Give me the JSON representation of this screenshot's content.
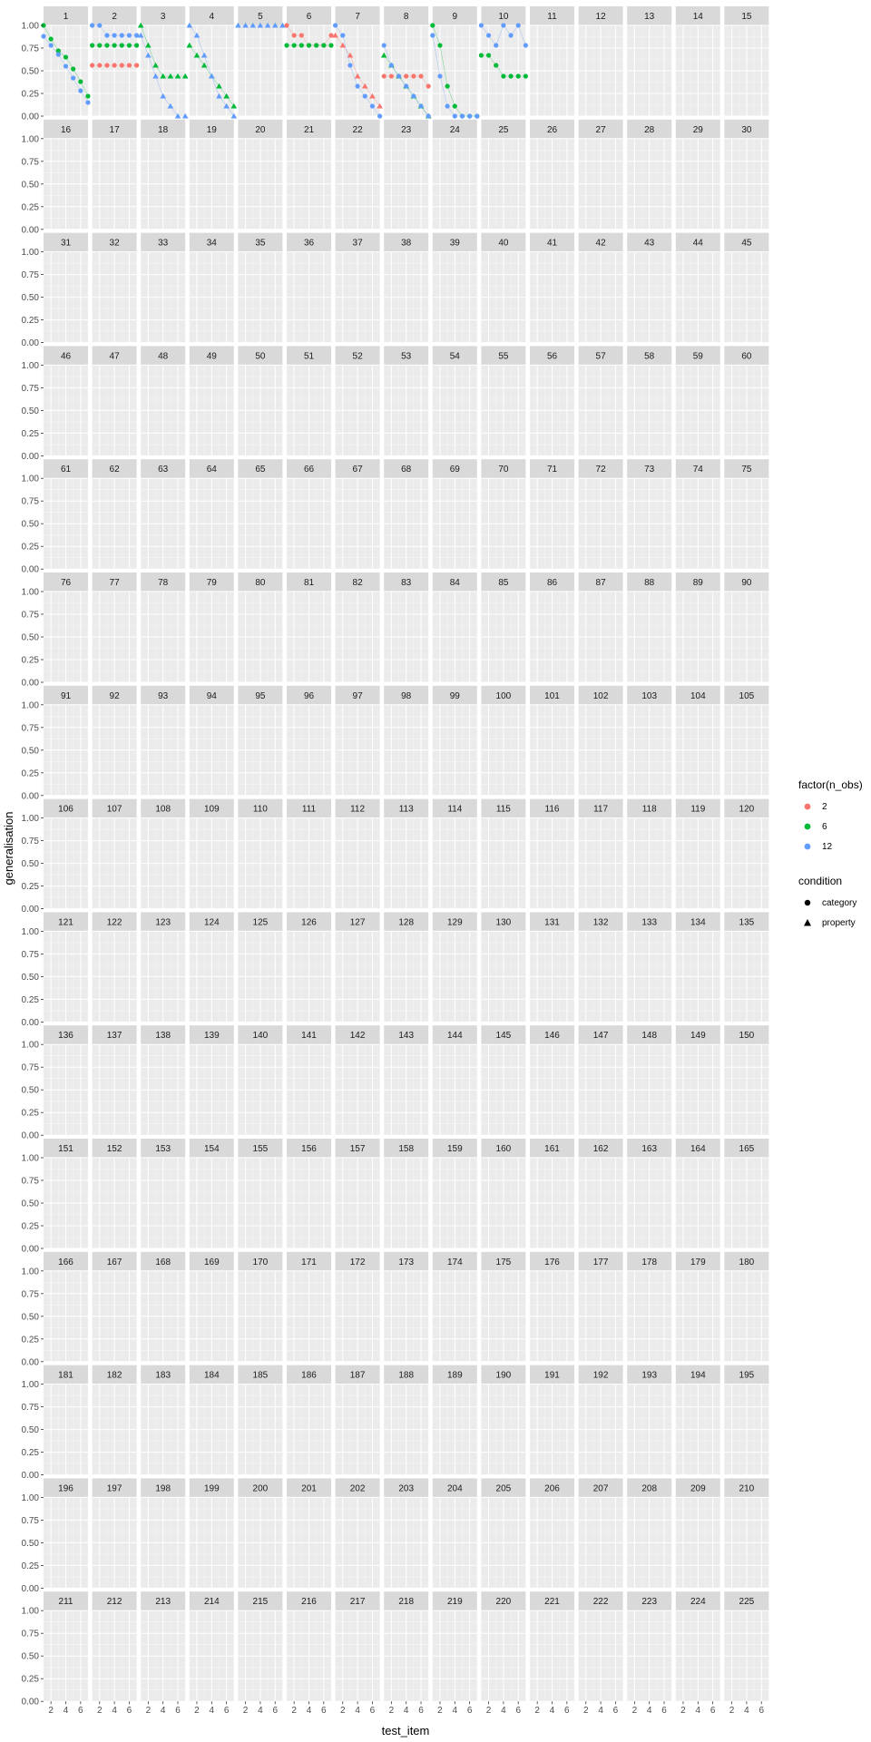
{
  "chart_data": {
    "type": "scatter",
    "facet_labels": [
      "1",
      "2",
      "3",
      "4",
      "5",
      "6",
      "7",
      "8",
      "9",
      "10",
      "11",
      "12",
      "13",
      "14",
      "15",
      "16",
      "17",
      "18",
      "19",
      "20",
      "21",
      "22",
      "23",
      "24",
      "25",
      "26",
      "27",
      "28",
      "29",
      "30",
      "31",
      "32",
      "33",
      "34",
      "35",
      "36",
      "37",
      "38",
      "39",
      "40",
      "41",
      "42",
      "43",
      "44",
      "45",
      "46",
      "47",
      "48",
      "49",
      "50",
      "51",
      "52",
      "53",
      "54",
      "55",
      "56",
      "57",
      "58",
      "59",
      "60",
      "61",
      "62",
      "63",
      "64",
      "65",
      "66",
      "67",
      "68",
      "69",
      "70",
      "71",
      "72",
      "73",
      "74",
      "75",
      "76",
      "77",
      "78",
      "79",
      "80",
      "81",
      "82",
      "83",
      "84",
      "85",
      "86",
      "87",
      "88",
      "89",
      "90",
      "91",
      "92",
      "93",
      "94",
      "95",
      "96",
      "97",
      "98",
      "99",
      "100",
      "101",
      "102",
      "103",
      "104",
      "105",
      "106",
      "107",
      "108",
      "109",
      "110",
      "111",
      "112",
      "113",
      "114",
      "115",
      "116",
      "117",
      "118",
      "119",
      "120",
      "121",
      "122",
      "123",
      "124",
      "125",
      "126",
      "127",
      "128",
      "129",
      "130",
      "131",
      "132",
      "133",
      "134",
      "135",
      "136",
      "137",
      "138",
      "139",
      "140",
      "141",
      "142",
      "143",
      "144",
      "145",
      "146",
      "147",
      "148",
      "149",
      "150",
      "151",
      "152",
      "153",
      "154",
      "155",
      "156",
      "157",
      "158",
      "159",
      "160",
      "161",
      "162",
      "163",
      "164",
      "165",
      "166",
      "167",
      "168",
      "169",
      "170",
      "171",
      "172",
      "173",
      "174",
      "175",
      "176",
      "177",
      "178",
      "179",
      "180",
      "181",
      "182",
      "183",
      "184",
      "185",
      "186",
      "187",
      "188",
      "189",
      "190",
      "191",
      "192",
      "193",
      "194",
      "195",
      "196",
      "197",
      "198",
      "199",
      "200",
      "201",
      "202",
      "203",
      "204",
      "205",
      "206",
      "207",
      "208",
      "209",
      "210",
      "211",
      "212",
      "213",
      "214",
      "215",
      "216",
      "217",
      "218",
      "219",
      "220",
      "221",
      "222",
      "223",
      "224",
      "225"
    ],
    "xlabel": "test_item",
    "ylabel": "generalisation",
    "x_ticks": [
      2,
      4,
      6
    ],
    "y_ticks": [
      "0.00",
      "0.25",
      "0.50",
      "0.75",
      "1.00"
    ],
    "xlim": [
      1,
      7
    ],
    "ylim": [
      0,
      1
    ],
    "grid": true,
    "legend_placement": "right",
    "color_legend": {
      "title": "factor(n_obs)",
      "entries": [
        {
          "label": "2",
          "color": "#F8766D"
        },
        {
          "label": "6",
          "color": "#00BA38"
        },
        {
          "label": "12",
          "color": "#619CFF"
        }
      ]
    },
    "shape_legend": {
      "title": "condition",
      "entries": [
        {
          "label": "category",
          "shape": "circle"
        },
        {
          "label": "property",
          "shape": "triangle"
        }
      ]
    },
    "panels": [
      {
        "id": 1,
        "series": [
          {
            "n_obs": "6",
            "condition": "category",
            "x": [
              1,
              2,
              3,
              4,
              5,
              6,
              7
            ],
            "y": [
              1.0,
              0.85,
              0.72,
              0.65,
              0.52,
              0.38,
              0.22
            ]
          },
          {
            "n_obs": "12",
            "condition": "category",
            "x": [
              1,
              2,
              3,
              4,
              5,
              6,
              7
            ],
            "y": [
              0.88,
              0.78,
              0.68,
              0.55,
              0.42,
              0.28,
              0.15
            ]
          }
        ]
      },
      {
        "id": 2,
        "series": [
          {
            "n_obs": "2",
            "condition": "category",
            "x": [
              1,
              2,
              3,
              4,
              5,
              6,
              7
            ],
            "y": [
              0.56,
              0.56,
              0.56,
              0.56,
              0.56,
              0.56,
              0.56
            ]
          },
          {
            "n_obs": "6",
            "condition": "category",
            "x": [
              1,
              2,
              3,
              4,
              5,
              6,
              7
            ],
            "y": [
              0.78,
              0.78,
              0.78,
              0.78,
              0.78,
              0.78,
              0.78
            ]
          },
          {
            "n_obs": "12",
            "condition": "category",
            "x": [
              1,
              2,
              3,
              4,
              5,
              6,
              7
            ],
            "y": [
              1.0,
              1.0,
              0.89,
              0.89,
              0.89,
              0.89,
              0.89
            ]
          }
        ]
      },
      {
        "id": 3,
        "series": [
          {
            "n_obs": "6",
            "condition": "property",
            "x": [
              1,
              2,
              3,
              4,
              5,
              6,
              7
            ],
            "y": [
              1.0,
              0.78,
              0.56,
              0.44,
              0.44,
              0.44,
              0.44
            ]
          },
          {
            "n_obs": "12",
            "condition": "property",
            "x": [
              1,
              2,
              3,
              4,
              5,
              6,
              7
            ],
            "y": [
              0.89,
              0.67,
              0.44,
              0.22,
              0.11,
              0.0,
              0.0
            ]
          }
        ]
      },
      {
        "id": 4,
        "series": [
          {
            "n_obs": "6",
            "condition": "property",
            "x": [
              1,
              2,
              3,
              4,
              5,
              6,
              7
            ],
            "y": [
              0.78,
              0.67,
              0.56,
              0.44,
              0.33,
              0.22,
              0.11
            ]
          },
          {
            "n_obs": "12",
            "condition": "property",
            "x": [
              1,
              2,
              3,
              4,
              5,
              6,
              7
            ],
            "y": [
              1.0,
              0.89,
              0.67,
              0.44,
              0.22,
              0.11,
              0.0
            ]
          }
        ]
      },
      {
        "id": 5,
        "series": [
          {
            "n_obs": "12",
            "condition": "property",
            "x": [
              1,
              2,
              3,
              4,
              5,
              6,
              7
            ],
            "y": [
              1.0,
              1.0,
              1.0,
              1.0,
              1.0,
              1.0,
              1.0
            ]
          }
        ]
      },
      {
        "id": 6,
        "series": [
          {
            "n_obs": "2",
            "condition": "category",
            "x": [
              1,
              2,
              3,
              4,
              5,
              6,
              7
            ],
            "y": [
              1.0,
              0.89,
              0.89,
              0.78,
              0.78,
              0.78,
              0.89
            ]
          },
          {
            "n_obs": "6",
            "condition": "category",
            "x": [
              1,
              2,
              3,
              4,
              5,
              6,
              7
            ],
            "y": [
              0.78,
              0.78,
              0.78,
              0.78,
              0.78,
              0.78,
              0.78
            ]
          }
        ]
      },
      {
        "id": 7,
        "series": [
          {
            "n_obs": "2",
            "condition": "property",
            "x": [
              1,
              2,
              3,
              4,
              5,
              6,
              7
            ],
            "y": [
              0.89,
              0.78,
              0.67,
              0.44,
              0.33,
              0.22,
              0.11
            ]
          },
          {
            "n_obs": "12",
            "condition": "category",
            "x": [
              1,
              2,
              3,
              4,
              5,
              6,
              7
            ],
            "y": [
              1.0,
              0.89,
              0.56,
              0.33,
              0.22,
              0.11,
              0.0
            ]
          }
        ]
      },
      {
        "id": 8,
        "series": [
          {
            "n_obs": "2",
            "condition": "category",
            "x": [
              1,
              2,
              3,
              4,
              5,
              6,
              7
            ],
            "y": [
              0.44,
              0.44,
              0.44,
              0.44,
              0.44,
              0.44,
              0.33
            ]
          },
          {
            "n_obs": "6",
            "condition": "property",
            "x": [
              1,
              2,
              3,
              4,
              5,
              6,
              7
            ],
            "y": [
              0.67,
              0.56,
              0.44,
              0.33,
              0.22,
              0.11,
              0.0
            ]
          },
          {
            "n_obs": "12",
            "condition": "category",
            "x": [
              1,
              2,
              3,
              4,
              5,
              6,
              7
            ],
            "y": [
              0.78,
              0.56,
              0.44,
              0.33,
              0.22,
              0.11,
              0.0
            ]
          }
        ]
      },
      {
        "id": 9,
        "series": [
          {
            "n_obs": "6",
            "condition": "category",
            "x": [
              1,
              2,
              3,
              4,
              5,
              6,
              7
            ],
            "y": [
              1.0,
              0.78,
              0.33,
              0.11,
              0.0,
              0.0,
              0.0
            ]
          },
          {
            "n_obs": "12",
            "condition": "category",
            "x": [
              1,
              2,
              3,
              4,
              5,
              6,
              7
            ],
            "y": [
              0.89,
              0.44,
              0.11,
              0.0,
              0.0,
              0.0,
              0.0
            ]
          }
        ]
      },
      {
        "id": 10,
        "series": [
          {
            "n_obs": "6",
            "condition": "category",
            "x": [
              1,
              2,
              3,
              4,
              5,
              6,
              7
            ],
            "y": [
              0.67,
              0.67,
              0.56,
              0.44,
              0.44,
              0.44,
              0.44
            ]
          },
          {
            "n_obs": "12",
            "condition": "category",
            "x": [
              1,
              2,
              3,
              4,
              5,
              6,
              7
            ],
            "y": [
              1.0,
              0.89,
              0.78,
              1.0,
              0.89,
              1.0,
              0.78
            ]
          }
        ]
      }
    ]
  }
}
